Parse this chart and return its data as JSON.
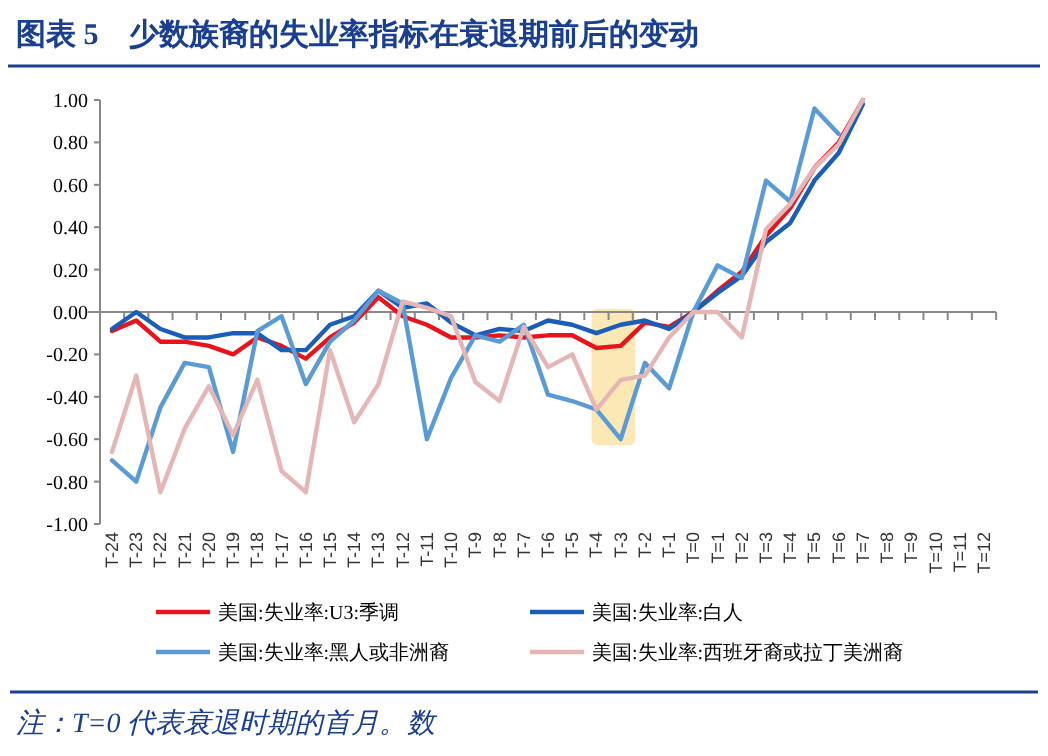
{
  "chart_data": {
    "type": "line",
    "title": "图表 5　少数族裔的失业率指标在衰退期前后的变动",
    "categories": [
      "T-24",
      "T-23",
      "T-22",
      "T-21",
      "T-20",
      "T-19",
      "T-18",
      "T-17",
      "T-16",
      "T-15",
      "T-14",
      "T-13",
      "T-12",
      "T-11",
      "T-10",
      "T-9",
      "T-8",
      "T-7",
      "T-6",
      "T-5",
      "T-4",
      "T-3",
      "T-2",
      "T-1",
      "T=0",
      "T=1",
      "T=2",
      "T=3",
      "T=4",
      "T=5",
      "T=6",
      "T=7",
      "T=8",
      "T=9",
      "T=10",
      "T=11",
      "T=12"
    ],
    "series": [
      {
        "name": "美国:失业率:U3:季调",
        "color": "#e8141c",
        "values": [
          -0.09,
          -0.04,
          -0.14,
          -0.14,
          -0.16,
          -0.2,
          -0.12,
          -0.16,
          -0.22,
          -0.12,
          -0.05,
          0.07,
          -0.02,
          -0.06,
          -0.12,
          -0.12,
          -0.11,
          -0.12,
          -0.11,
          -0.11,
          -0.17,
          -0.16,
          -0.05,
          -0.07,
          0,
          0.1,
          0.19,
          0.36,
          0.49,
          0.68,
          0.8,
          1.0,
          null,
          null,
          null,
          null,
          null
        ]
      },
      {
        "name": "美国:失业率:白人",
        "color": "#1a5eb8",
        "values": [
          -0.08,
          0,
          -0.08,
          -0.12,
          -0.12,
          -0.1,
          -0.1,
          -0.18,
          -0.18,
          -0.06,
          -0.02,
          0.1,
          0.02,
          0.04,
          -0.05,
          -0.11,
          -0.08,
          -0.09,
          -0.04,
          -0.06,
          -0.1,
          -0.06,
          -0.04,
          -0.08,
          0,
          0.09,
          0.17,
          0.33,
          0.42,
          0.62,
          0.75,
          0.98,
          null,
          null,
          null,
          null,
          null
        ]
      },
      {
        "name": "美国:失业率:黑人或非洲裔",
        "color": "#5b9bd5",
        "values": [
          -0.7,
          -0.8,
          -0.45,
          -0.24,
          -0.26,
          -0.66,
          -0.09,
          -0.02,
          -0.34,
          -0.14,
          -0.04,
          0.1,
          0.04,
          -0.6,
          -0.31,
          -0.11,
          -0.14,
          -0.06,
          -0.39,
          -0.42,
          -0.46,
          -0.6,
          -0.24,
          -0.36,
          0,
          0.22,
          0.16,
          0.62,
          0.52,
          0.96,
          0.84,
          null,
          null,
          null,
          null,
          null,
          null
        ]
      },
      {
        "name": "美国:失业率:西班牙裔或拉丁美洲裔",
        "color": "#e6b5b5",
        "values": [
          -0.66,
          -0.3,
          -0.85,
          -0.55,
          -0.35,
          -0.58,
          -0.32,
          -0.75,
          -0.85,
          -0.18,
          -0.52,
          -0.34,
          0.05,
          0.02,
          -0.02,
          -0.33,
          -0.42,
          -0.07,
          -0.26,
          -0.2,
          -0.46,
          -0.32,
          -0.3,
          -0.12,
          0,
          0,
          -0.12,
          0.39,
          0.51,
          0.68,
          0.79,
          1.0,
          null,
          null,
          null,
          null,
          null
        ]
      }
    ],
    "ylim": [
      -1,
      1
    ],
    "yticks": [
      {
        "value": 1,
        "label": "1.00"
      },
      {
        "value": 0.8,
        "label": "0.80"
      },
      {
        "value": 0.6,
        "label": "0.60"
      },
      {
        "value": 0.4,
        "label": "0.40"
      },
      {
        "value": 0.2,
        "label": "0.20"
      },
      {
        "value": 0,
        "label": "0.00"
      },
      {
        "value": -0.2,
        "label": "-0.20"
      },
      {
        "value": -0.4,
        "label": "-0.40"
      },
      {
        "value": -0.6,
        "label": "-0.60"
      },
      {
        "value": -0.8,
        "label": "-0.80"
      },
      {
        "value": -1,
        "label": "-1.00"
      }
    ],
    "bands": [
      {
        "axis": "x",
        "from": "T-4",
        "to": "T-3",
        "color": "#fce4a8"
      }
    ],
    "legend": "bottom",
    "marker": "none",
    "line_style": "solid",
    "annotations": [
      "注：T=0 代表衰退时期的首月。数"
    ]
  }
}
